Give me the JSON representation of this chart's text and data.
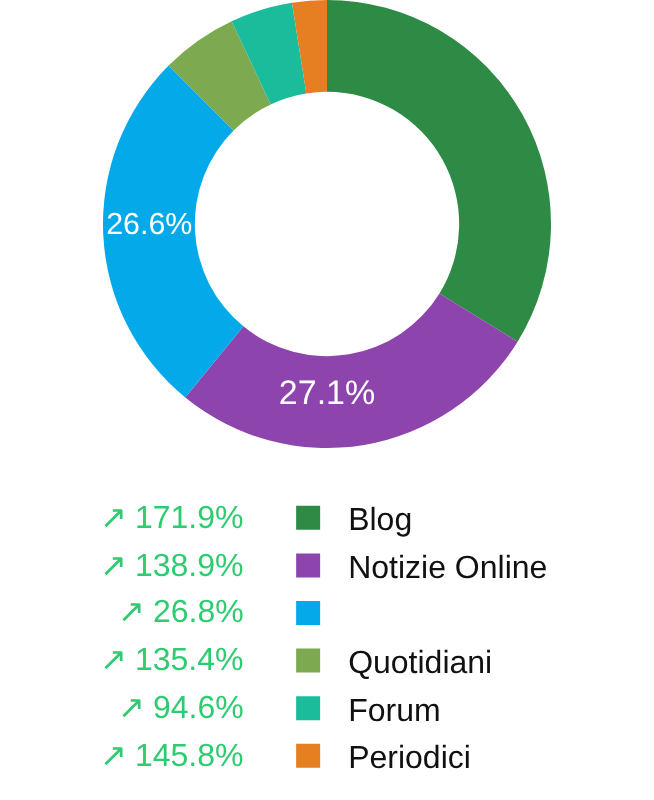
{
  "chart_data": {
    "type": "donut",
    "categories": [
      "Blog",
      "Notizie Online",
      null,
      "Quotidiani",
      "Forum",
      "Periodici"
    ],
    "values": [
      33.8,
      27.1,
      26.6,
      5.5,
      4.5,
      2.5
    ],
    "colors": [
      "#2e8b45",
      "#8e44ad",
      "#03a9e8",
      "#7daa50",
      "#1abc9c",
      "#e67e22"
    ],
    "value_labels": [
      null,
      "27.1%",
      "26.6%",
      null,
      null,
      null
    ],
    "legend": "bottom",
    "annotations": [
      "↗ 171.9%",
      "↗ 138.9%",
      "↗ 26.8%",
      "↗ 135.4%",
      "↗ 94.6%",
      "↗ 145.8%"
    ]
  }
}
